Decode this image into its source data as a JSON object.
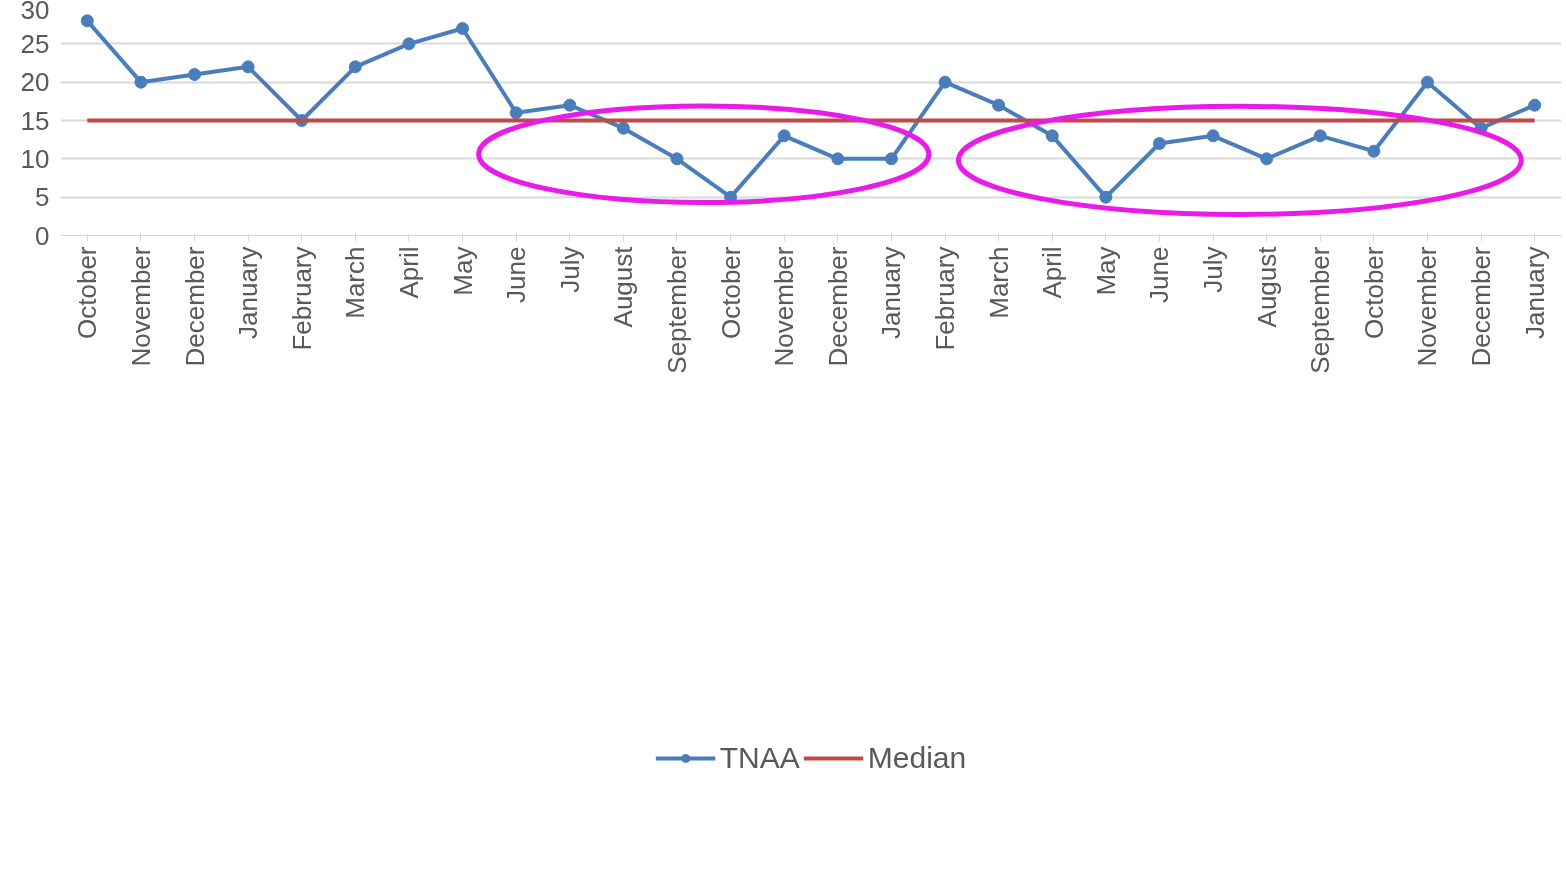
{
  "chart_data": {
    "type": "line",
    "categories": [
      "October",
      "November",
      "December",
      "January",
      "February",
      "March",
      "April",
      "May",
      "June",
      "July",
      "August",
      "September",
      "October",
      "November",
      "December",
      "January",
      "February",
      "March",
      "April",
      "May",
      "June",
      "July",
      "August",
      "September",
      "October",
      "November",
      "December",
      "January"
    ],
    "series": [
      {
        "name": "TNAA",
        "color": "#4a7ebb",
        "marker": "circle",
        "values": [
          28,
          20,
          21,
          22,
          15,
          22,
          25,
          27,
          16,
          17,
          14,
          10,
          5,
          13,
          10,
          10,
          20,
          17,
          13,
          5,
          12,
          13,
          10,
          13,
          11,
          20,
          14,
          17
        ]
      },
      {
        "name": "Median",
        "color": "#be4b48",
        "marker": "none",
        "values": [
          15,
          15,
          15,
          15,
          15,
          15,
          15,
          15,
          15,
          15,
          15,
          15,
          15,
          15,
          15,
          15,
          15,
          15,
          15,
          15,
          15,
          15,
          15,
          15,
          15,
          15,
          15,
          15
        ]
      }
    ],
    "ylim": [
      0,
      30
    ],
    "yticks": [
      0,
      5,
      10,
      15,
      20,
      25,
      30
    ],
    "grid": "y",
    "legend": "bottom"
  }
}
